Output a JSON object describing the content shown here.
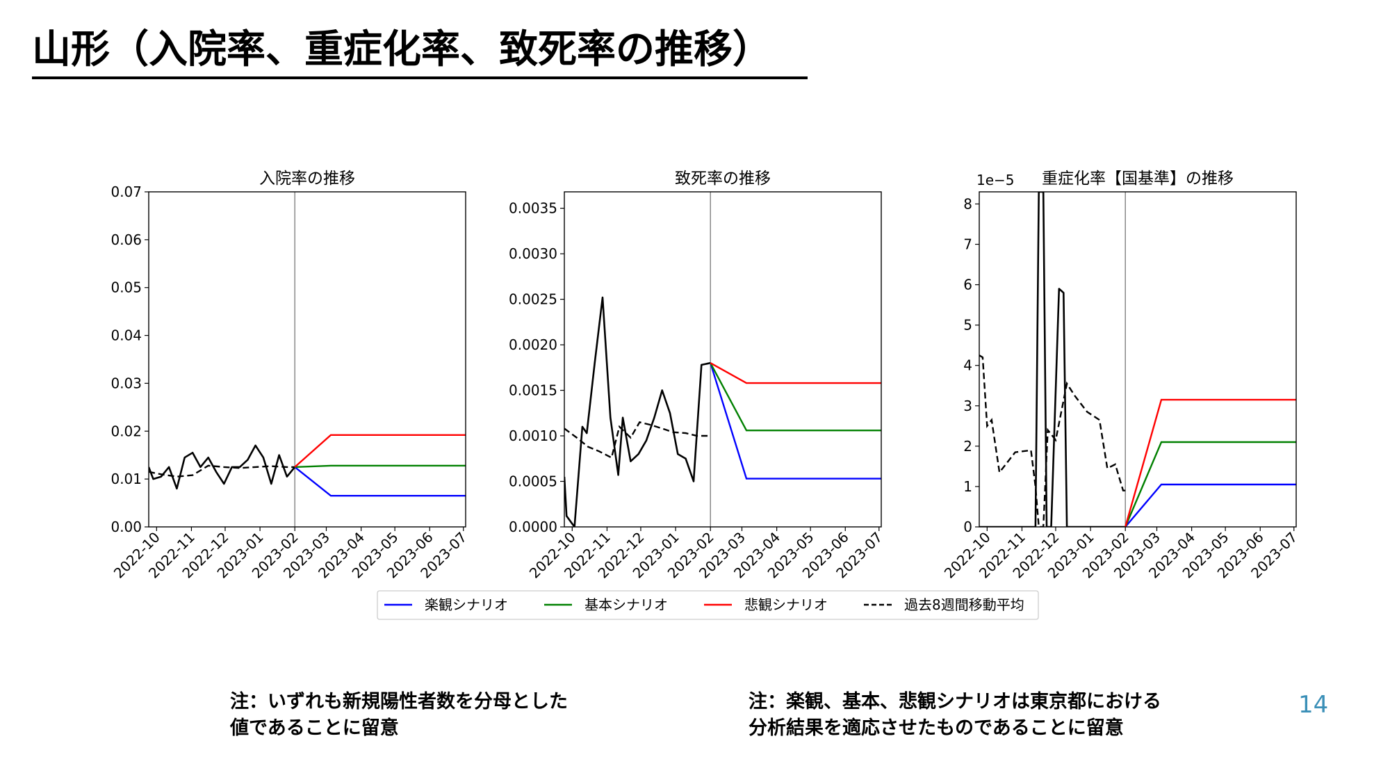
{
  "page": {
    "title": "山形（入院率、重症化率、致死率の推移）",
    "page_number": "14",
    "notes": [
      [
        "注：いずれも新規陽性者数を分母とした",
        "値であることに留意"
      ],
      [
        "注：楽観、基本、悲観シナリオは東京都における",
        "分析結果を適応させたものであることに留意"
      ]
    ]
  },
  "colors": {
    "optimistic": "#0000ff",
    "base": "#008000",
    "pessimistic": "#ff0000",
    "actual": "#000000",
    "moving_avg": "#000000",
    "divider": "#808080",
    "page_number": "#3a8fb7"
  },
  "legend": {
    "placement": "bottom-center",
    "entries": [
      {
        "label": "楽観シナリオ",
        "color": "#0000ff",
        "style": "solid"
      },
      {
        "label": "基本シナリオ",
        "color": "#008000",
        "style": "solid"
      },
      {
        "label": "悲観シナリオ",
        "color": "#ff0000",
        "style": "solid"
      },
      {
        "label": "過去8週間移動平均",
        "color": "#000000",
        "style": "dashed"
      }
    ]
  },
  "chart_data": [
    {
      "type": "line",
      "title": "入院率の推移",
      "x_ticks": [
        "2022-10",
        "2022-11",
        "2022-12",
        "2023-01",
        "2023-02",
        "2023-03",
        "2023-04",
        "2023-05",
        "2023-06",
        "2023-07"
      ],
      "xlim": [
        "2022-09-24",
        "2023-07-03"
      ],
      "ylim": [
        0,
        0.07
      ],
      "y_ticks": [
        "0.00",
        "0.01",
        "0.02",
        "0.03",
        "0.04",
        "0.05",
        "0.06",
        "0.07"
      ],
      "y_tick_values": [
        0,
        0.01,
        0.02,
        0.03,
        0.04,
        0.05,
        0.06,
        0.07
      ],
      "forecast_start": "2023-02-01",
      "actual": {
        "x": [
          "2022-09-24",
          "2022-09-28",
          "2022-10-05",
          "2022-10-12",
          "2022-10-19",
          "2022-10-26",
          "2022-11-02",
          "2022-11-09",
          "2022-11-16",
          "2022-11-23",
          "2022-11-30",
          "2022-12-07",
          "2022-12-14",
          "2022-12-21",
          "2022-12-28",
          "2023-01-04",
          "2023-01-11",
          "2023-01-18",
          "2023-01-25",
          "2023-02-01"
        ],
        "y": [
          0.0125,
          0.01,
          0.0105,
          0.0125,
          0.008,
          0.0145,
          0.0155,
          0.0125,
          0.0145,
          0.0115,
          0.009,
          0.0125,
          0.0125,
          0.014,
          0.017,
          0.0145,
          0.009,
          0.015,
          0.0105,
          0.0125
        ]
      },
      "moving_avg": {
        "x": [
          "2022-09-24",
          "2022-10-05",
          "2022-10-19",
          "2022-11-02",
          "2022-11-16",
          "2022-11-30",
          "2022-12-14",
          "2022-12-28",
          "2023-01-11",
          "2023-01-25",
          "2023-02-01"
        ],
        "y": [
          0.0115,
          0.011,
          0.0105,
          0.0108,
          0.0128,
          0.0125,
          0.0123,
          0.0125,
          0.0127,
          0.0125,
          0.0125
        ]
      },
      "series": [
        {
          "name": "楽観シナリオ",
          "x": [
            "2023-02-01",
            "2023-03-05",
            "2023-07-03"
          ],
          "y": [
            0.0125,
            0.0065,
            0.0065
          ]
        },
        {
          "name": "基本シナリオ",
          "x": [
            "2023-02-01",
            "2023-03-05",
            "2023-07-03"
          ],
          "y": [
            0.0125,
            0.0128,
            0.0128
          ]
        },
        {
          "name": "悲観シナリオ",
          "x": [
            "2023-02-01",
            "2023-03-05",
            "2023-07-03"
          ],
          "y": [
            0.0125,
            0.0192,
            0.0192
          ]
        }
      ]
    },
    {
      "type": "line",
      "title": "致死率の推移",
      "x_ticks": [
        "2022-10",
        "2022-11",
        "2022-12",
        "2023-01",
        "2023-02",
        "2023-03",
        "2023-04",
        "2023-05",
        "2023-06",
        "2023-07"
      ],
      "xlim": [
        "2022-09-24",
        "2023-07-03"
      ],
      "ylim": [
        0,
        0.00368
      ],
      "y_ticks": [
        "0.0000",
        "0.0005",
        "0.0010",
        "0.0015",
        "0.0020",
        "0.0025",
        "0.0030",
        "0.0035"
      ],
      "y_tick_values": [
        0,
        0.0005,
        0.001,
        0.0015,
        0.002,
        0.0025,
        0.003,
        0.0035
      ],
      "forecast_start": "2023-02-01",
      "actual": {
        "x": [
          "2022-09-24",
          "2022-09-26",
          "2022-10-03",
          "2022-10-10",
          "2022-10-14",
          "2022-10-21",
          "2022-10-28",
          "2022-11-04",
          "2022-11-11",
          "2022-11-15",
          "2022-11-22",
          "2022-11-29",
          "2022-12-06",
          "2022-12-13",
          "2022-12-20",
          "2022-12-27",
          "2023-01-03",
          "2023-01-10",
          "2023-01-17",
          "2023-01-24",
          "2023-02-01"
        ],
        "y": [
          0.00055,
          0.00012,
          0,
          0.0011,
          0.00103,
          0.0018,
          0.00252,
          0.0012,
          0.00057,
          0.0012,
          0.00072,
          0.0008,
          0.00095,
          0.0012,
          0.0015,
          0.00125,
          0.0008,
          0.00075,
          0.0005,
          0.00178,
          0.0018
        ]
      },
      "moving_avg": {
        "x": [
          "2022-09-24",
          "2022-10-05",
          "2022-10-15",
          "2022-10-25",
          "2022-11-05",
          "2022-11-12",
          "2022-11-22",
          "2022-11-30",
          "2022-12-10",
          "2022-12-20",
          "2022-12-30",
          "2023-01-10",
          "2023-01-20",
          "2023-01-30"
        ],
        "y": [
          0.00108,
          0.00098,
          0.00088,
          0.00083,
          0.00076,
          0.0011,
          0.00098,
          0.00115,
          0.00112,
          0.00108,
          0.00104,
          0.00103,
          0.001,
          0.001
        ]
      },
      "series": [
        {
          "name": "楽観シナリオ",
          "x": [
            "2023-02-01",
            "2023-03-05",
            "2023-07-03"
          ],
          "y": [
            0.0018,
            0.00053,
            0.00053
          ]
        },
        {
          "name": "基本シナリオ",
          "x": [
            "2023-02-01",
            "2023-03-05",
            "2023-07-03"
          ],
          "y": [
            0.0018,
            0.00106,
            0.00106
          ]
        },
        {
          "name": "悲観シナリオ",
          "x": [
            "2023-02-01",
            "2023-03-05",
            "2023-07-03"
          ],
          "y": [
            0.0018,
            0.00158,
            0.00158
          ]
        }
      ]
    },
    {
      "type": "line",
      "title": "重症化率【国基準】の推移",
      "scale_label": "1e−5",
      "x_ticks": [
        "2022-10",
        "2022-11",
        "2022-12",
        "2023-01",
        "2023-02",
        "2023-03",
        "2023-04",
        "2023-05",
        "2023-06",
        "2023-07"
      ],
      "xlim": [
        "2022-09-24",
        "2023-07-03"
      ],
      "ylim": [
        0,
        8.3
      ],
      "y_ticks": [
        "0",
        "1",
        "2",
        "3",
        "4",
        "5",
        "6",
        "7",
        "8"
      ],
      "y_tick_values": [
        0,
        1,
        2,
        3,
        4,
        5,
        6,
        7,
        8
      ],
      "forecast_start": "2023-02-01",
      "actual": {
        "x": [
          "2022-09-24",
          "2022-11-09",
          "2022-11-13",
          "2022-11-16",
          "2022-11-20",
          "2022-11-23",
          "2022-11-27",
          "2022-12-04",
          "2022-12-08",
          "2022-12-11",
          "2023-02-01"
        ],
        "y": [
          0,
          0,
          0,
          8.3,
          8.3,
          0,
          0,
          5.9,
          5.8,
          0,
          0
        ]
      },
      "moving_avg": {
        "x": [
          "2022-09-24",
          "2022-09-27",
          "2022-10-01",
          "2022-10-05",
          "2022-10-12",
          "2022-10-26",
          "2022-11-09",
          "2022-11-13",
          "2022-11-16",
          "2022-11-20",
          "2022-11-24",
          "2022-12-01",
          "2022-12-11",
          "2022-12-18",
          "2022-12-29",
          "2023-01-09",
          "2023-01-16",
          "2023-01-23",
          "2023-01-30",
          "2023-02-01"
        ],
        "y": [
          4.25,
          4.2,
          2.5,
          2.65,
          1.35,
          1.85,
          1.9,
          1.0,
          0.0,
          0.0,
          2.4,
          2.15,
          3.55,
          3.25,
          2.85,
          2.65,
          1.45,
          1.55,
          0.9,
          0.9
        ]
      },
      "series": [
        {
          "name": "楽観シナリオ",
          "x": [
            "2023-02-01",
            "2023-03-05",
            "2023-07-03"
          ],
          "y": [
            0,
            1.05,
            1.05
          ]
        },
        {
          "name": "基本シナリオ",
          "x": [
            "2023-02-01",
            "2023-03-05",
            "2023-07-03"
          ],
          "y": [
            0,
            2.1,
            2.1
          ]
        },
        {
          "name": "悲観シナリオ",
          "x": [
            "2023-02-01",
            "2023-03-05",
            "2023-07-03"
          ],
          "y": [
            0,
            3.15,
            3.15
          ]
        }
      ]
    }
  ]
}
